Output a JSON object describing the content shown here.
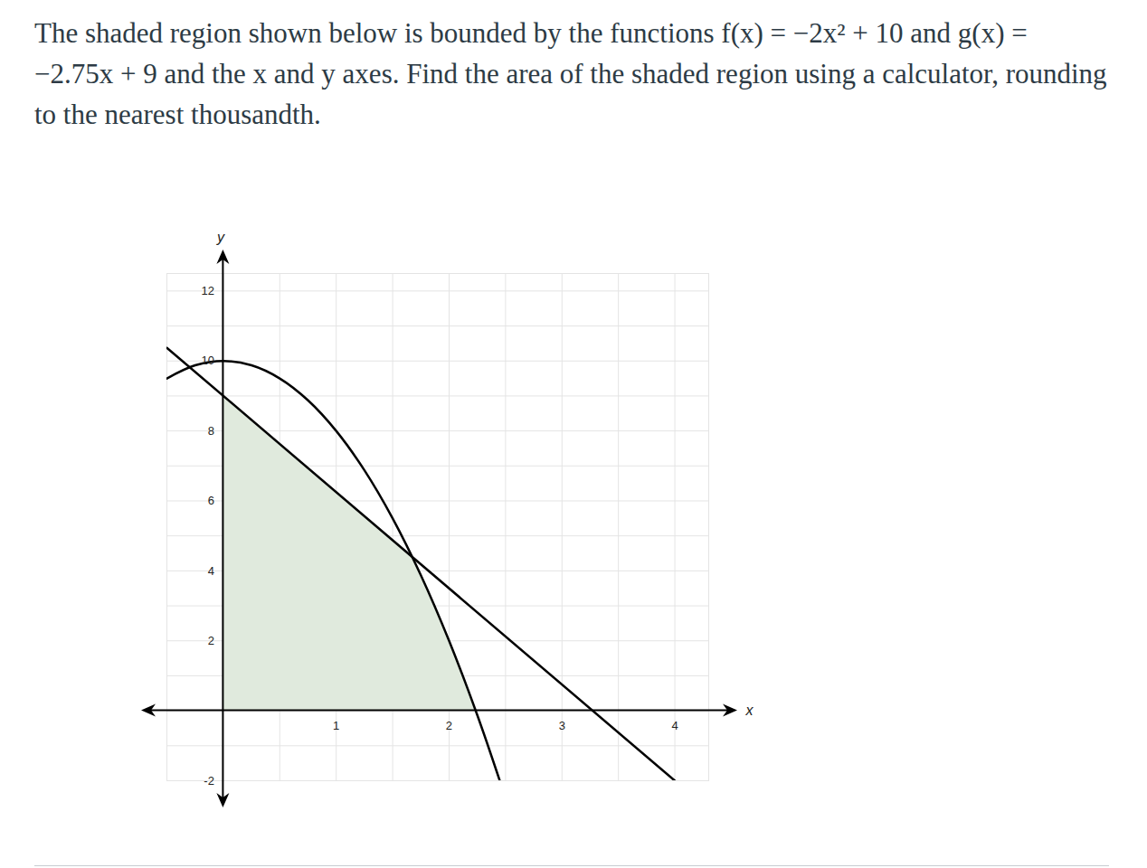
{
  "chart_data": {
    "type": "line",
    "title": "The shaded region shown below is bounded by the functions f(x) = −2x² + 10 and g(x) = −2.75x + 9 and the x and y axes. Find the area of the shaded region using a calculator, rounding to the nearest thousandth.",
    "xlabel": "x",
    "ylabel": "y",
    "xlim": [
      -0.5,
      4.3
    ],
    "ylim": [
      -2,
      12.5
    ],
    "xticks": [
      1,
      2,
      3,
      4
    ],
    "yticks": [
      -2,
      2,
      4,
      6,
      8,
      10,
      12
    ],
    "x_grid": [
      -0.5,
      0,
      0.5,
      1,
      1.5,
      2,
      2.5,
      3,
      3.5,
      4
    ],
    "y_grid": [
      -2,
      -1,
      0,
      1,
      2,
      3,
      4,
      5,
      6,
      7,
      8,
      9,
      10,
      11,
      12
    ],
    "grid": true,
    "color": "#000000",
    "series": [
      {
        "x": [
          -0.5,
          -0.25,
          0,
          0.25,
          0.5,
          0.75,
          1,
          1.25,
          1.5,
          1.75,
          2,
          2.25,
          2.449
        ],
        "values": [
          9.5,
          9.875,
          10,
          9.875,
          9.5,
          8.875,
          8,
          6.875,
          5.5,
          3.875,
          2,
          -0.125,
          -2
        ]
      },
      {
        "x": [
          -0.5,
          4
        ],
        "values": [
          10.375,
          -2
        ]
      }
    ],
    "region": {
      "x": [
        0,
        0.5,
        1,
        1.5,
        1.674,
        1.75,
        2,
        2.236
      ],
      "values": [
        9,
        7.625,
        6.25,
        4.875,
        4.397,
        3.875,
        2,
        0
      ],
      "color": "#e0eadd"
    }
  }
}
